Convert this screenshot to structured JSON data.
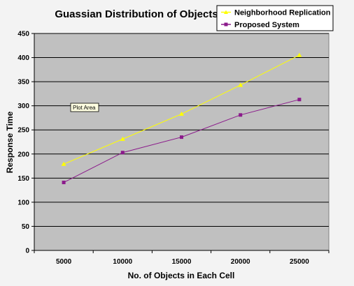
{
  "colors": {
    "plot_background": "#c0c0c0",
    "series_1": "#ffff00",
    "series_2": "#8b1a8b",
    "grid": "#000000"
  },
  "tooltip": {
    "text": "Plot Area"
  },
  "chart_data": {
    "type": "line",
    "title": "Guassian Distribution of Objects",
    "xlabel": "No. of Objects in Each Cell",
    "ylabel": "Response Time",
    "categories": [
      "5000",
      "10000",
      "15000",
      "20000",
      "25000"
    ],
    "ylim": [
      0,
      450
    ],
    "yticks": [
      0,
      50,
      100,
      150,
      200,
      250,
      300,
      350,
      400,
      450
    ],
    "grid": true,
    "legend_position": "top-right",
    "series": [
      {
        "name": "Neighborhood Replication",
        "marker": "triangle",
        "values": [
          179,
          231,
          283,
          343,
          405
        ]
      },
      {
        "name": "Proposed System",
        "marker": "square",
        "values": [
          141,
          203,
          235,
          281,
          313
        ]
      }
    ]
  }
}
